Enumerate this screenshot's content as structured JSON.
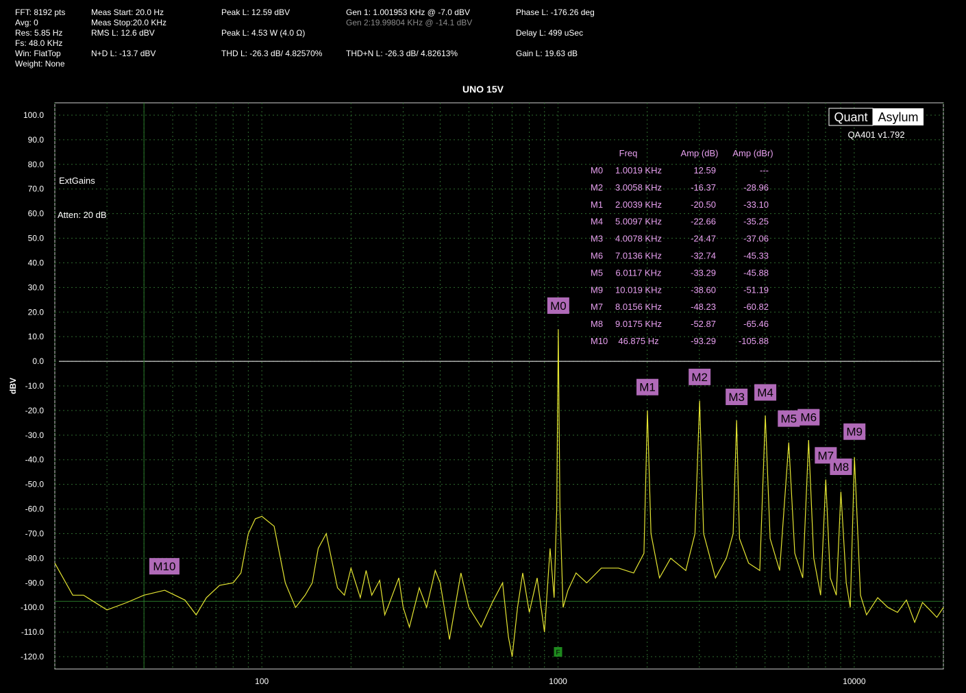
{
  "header": {
    "col1": [
      "FFT: 8192 pts",
      "Avg: 0",
      "Res: 5.85 Hz",
      "Fs: 48.0 KHz",
      "Win: FlatTop",
      "Weight: None"
    ],
    "col2": [
      "Meas Start: 20.0 Hz",
      "Meas Stop:20.0 KHz",
      "RMS L: 12.6 dBV",
      "N+D L: -13.7 dBV"
    ],
    "col3": [
      "Peak L: 12.59 dBV",
      "Peak L: 4.53 W (4.0 Ω)",
      "THD L: -26.3 dB/ 4.82570%"
    ],
    "col4": [
      "Gen 1: 1.001953 KHz @ -7.0  dBV",
      "Gen 2:19.99804 KHz @ -14.1  dBV",
      "THD+N L: -26.3 dB/ 4.82613%"
    ],
    "col5": [
      "Phase L: -176.26 deg",
      "Delay L: 499 uSec",
      "Gain L: 19.63 dB"
    ]
  },
  "brand": {
    "logo_left": "Quant",
    "logo_right": "Asylum",
    "version": "QA401 v1.792"
  },
  "annotations": {
    "ext_gains": "ExtGains",
    "atten": "Atten: 20 dB"
  },
  "marker_table": {
    "headers": [
      "Freq",
      "Amp (dB)",
      "Amp (dBr)"
    ],
    "rows": [
      [
        "M0",
        "1.0019 KHz",
        "12.59",
        "---"
      ],
      [
        "M2",
        "3.0058 KHz",
        "-16.37",
        "-28.96"
      ],
      [
        "M1",
        "2.0039 KHz",
        "-20.50",
        "-33.10"
      ],
      [
        "M4",
        "5.0097 KHz",
        "-22.66",
        "-35.25"
      ],
      [
        "M3",
        "4.0078 KHz",
        "-24.47",
        "-37.06"
      ],
      [
        "M6",
        "7.0136 KHz",
        "-32.74",
        "-45.33"
      ],
      [
        "M5",
        "6.0117 KHz",
        "-33.29",
        "-45.88"
      ],
      [
        "M9",
        "10.019 KHz",
        "-38.60",
        "-51.19"
      ],
      [
        "M7",
        "8.0156 KHz",
        "-48.23",
        "-60.82"
      ],
      [
        "M8",
        "9.0175 KHz",
        "-52.87",
        "-65.46"
      ],
      [
        "M10",
        "46.875 Hz",
        "-93.29",
        "-105.88"
      ]
    ]
  },
  "colors": {
    "background": "#000000",
    "trace": "#e6e632",
    "grid": "#2f6b2f",
    "marker_bg": "#b06ab8",
    "marker_text": "#e8a0f0",
    "text": "#ffffff",
    "gen2_text": "#8a8a8a",
    "zero_line": "#ffffff",
    "cursor": "#2a7a2a"
  },
  "chart_data": {
    "type": "line",
    "title": "UNO 15V",
    "ylabel": "dBV",
    "xlabel": "",
    "x_scale": "log",
    "xlim": [
      20,
      20000
    ],
    "ylim": [
      -125,
      105
    ],
    "yticks": [
      100,
      90,
      80,
      70,
      60,
      50,
      40,
      30,
      20,
      10,
      0,
      -10,
      -20,
      -30,
      -40,
      -50,
      -60,
      -70,
      -80,
      -90,
      -100,
      -110,
      -120
    ],
    "ytick_labels": [
      "100.0",
      "90.0",
      "80.0",
      "70.0",
      "60.0",
      "50.0",
      "40.0",
      "30.0",
      "20.0",
      "10.0",
      "0.0",
      "-10.0",
      "-20.0",
      "-30.0",
      "-40.0",
      "-50.0",
      "-60.0",
      "-70.0",
      "-80.0",
      "-90.0",
      "-100.0",
      "-110.0",
      "-120.0"
    ],
    "xticks": [
      100,
      1000,
      10000
    ],
    "xtick_labels": [
      "100",
      "1000",
      "10000"
    ],
    "grid": true,
    "reference_line_y": 0,
    "cursor_x": 40,
    "cursor_y": -97.5,
    "cursor_flag": "F",
    "series": [
      {
        "color": "#e6e632",
        "x": [
          20,
          23,
          25,
          30,
          35,
          40,
          47,
          55,
          60,
          65,
          72,
          80,
          85,
          90,
          95,
          100,
          110,
          120,
          130,
          140,
          148,
          155,
          165,
          180,
          190,
          200,
          215,
          225,
          235,
          250,
          260,
          270,
          290,
          300,
          315,
          340,
          360,
          385,
          400,
          430,
          470,
          500,
          550,
          600,
          650,
          680,
          700,
          730,
          760,
          800,
          850,
          900,
          940,
          970,
          990,
          1002,
          1015,
          1040,
          1080,
          1150,
          1250,
          1400,
          1600,
          1800,
          1950,
          2004,
          2060,
          2200,
          2400,
          2700,
          2900,
          3006,
          3100,
          3400,
          3700,
          3900,
          4008,
          4100,
          4400,
          4800,
          5010,
          5200,
          5600,
          6012,
          6300,
          6700,
          7014,
          7300,
          7700,
          8016,
          8300,
          8700,
          9018,
          9400,
          9700,
          10019,
          10500,
          11000,
          12000,
          13000,
          14000,
          15000,
          16000,
          17000,
          18000,
          19000,
          20000
        ],
        "y": [
          -82,
          -95,
          -95,
          -101,
          -98,
          -95,
          -93,
          -97,
          -103,
          -96,
          -91,
          -90,
          -86,
          -70,
          -64,
          -63,
          -67,
          -90,
          -100,
          -95,
          -90,
          -76,
          -70,
          -92,
          -95,
          -84,
          -96,
          -85,
          -95,
          -89,
          -103,
          -98,
          -88,
          -100,
          -108,
          -92,
          -100,
          -85,
          -90,
          -113,
          -86,
          -100,
          -108,
          -98,
          -90,
          -112,
          -120,
          -100,
          -86,
          -102,
          -88,
          -110,
          -76,
          -96,
          -60,
          13,
          -60,
          -100,
          -93,
          -86,
          -90,
          -84,
          -84,
          -86,
          -78,
          -20,
          -70,
          -88,
          -80,
          -85,
          -70,
          -16,
          -70,
          -88,
          -80,
          -70,
          -24,
          -72,
          -82,
          -85,
          -22,
          -72,
          -85,
          -33,
          -78,
          -88,
          -32,
          -80,
          -95,
          -48,
          -88,
          -95,
          -53,
          -90,
          -100,
          -39,
          -95,
          -103,
          -96,
          -100,
          -102,
          -97,
          -106,
          -98,
          -101,
          -104,
          -100
        ]
      }
    ],
    "markers": [
      {
        "label": "M0",
        "x": 1001.9,
        "y": 12.59
      },
      {
        "label": "M1",
        "x": 2003.9,
        "y": -20.5
      },
      {
        "label": "M2",
        "x": 3005.8,
        "y": -16.37
      },
      {
        "label": "M3",
        "x": 4007.8,
        "y": -24.47
      },
      {
        "label": "M4",
        "x": 5009.7,
        "y": -22.66
      },
      {
        "label": "M5",
        "x": 6011.7,
        "y": -33.29
      },
      {
        "label": "M6",
        "x": 7013.6,
        "y": -32.74
      },
      {
        "label": "M7",
        "x": 8015.6,
        "y": -48.23
      },
      {
        "label": "M8",
        "x": 9017.5,
        "y": -52.87
      },
      {
        "label": "M9",
        "x": 10019,
        "y": -38.6
      },
      {
        "label": "M10",
        "x": 46.875,
        "y": -93.29
      }
    ]
  }
}
